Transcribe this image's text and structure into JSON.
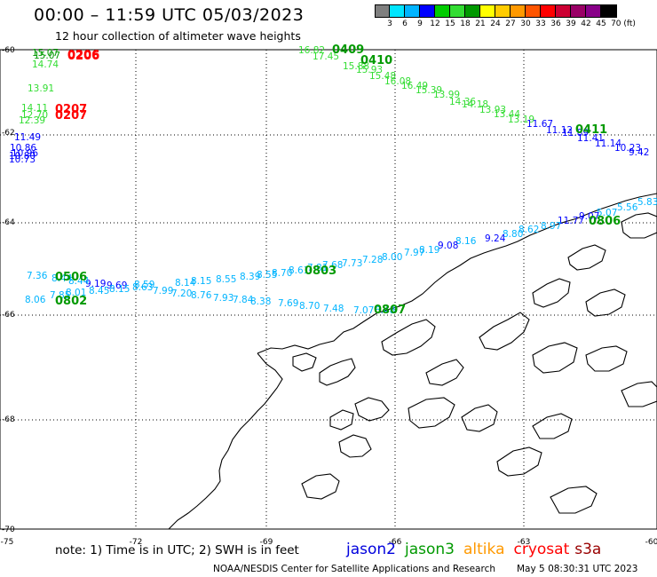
{
  "header": {
    "title": "00:00 – 11:59 UTC 05/03/2023",
    "subtitle": "12 hour collection of altimeter wave heights"
  },
  "colorbar": {
    "colors": [
      "#7f7f7f",
      "#00e5ff",
      "#00b4ff",
      "#0000ff",
      "#00cc00",
      "#33dd33",
      "#009900",
      "#ffff00",
      "#ffcc00",
      "#ff9900",
      "#ff5500",
      "#ff0000",
      "#cc0033",
      "#990066",
      "#880088",
      "#000000"
    ],
    "labels": [
      "3",
      "6",
      "9",
      "12",
      "15",
      "18",
      "21",
      "24",
      "27",
      "30",
      "33",
      "36",
      "39",
      "42",
      "45",
      "70 (ft)"
    ]
  },
  "axes": {
    "lon_labels": [
      "-75",
      "-72",
      "-69",
      "-66",
      "-63",
      "-60"
    ],
    "lat_labels": [
      "-60",
      "-62",
      "-64",
      "-66",
      "-68",
      "-70"
    ]
  },
  "observations": [
    {
      "t": "15.07",
      "c": "#009900"
    },
    {
      "t": "15.07",
      "c": "#009900"
    },
    {
      "t": "14.74",
      "c": "#33dd33"
    },
    {
      "t": "13.91",
      "c": "#33dd33"
    },
    {
      "t": "14.11",
      "c": "#33dd33"
    },
    {
      "t": "12.70",
      "c": "#33dd33"
    },
    {
      "t": "12.39",
      "c": "#33dd33"
    },
    {
      "t": "11.49",
      "c": "#0000ff"
    },
    {
      "t": "10.86",
      "c": "#0000ff"
    },
    {
      "t": "10.96",
      "c": "#0000ff"
    },
    {
      "t": "10.80",
      "c": "#0000ff"
    },
    {
      "t": "10.73",
      "c": "#0000ff"
    },
    {
      "t": "16.82",
      "c": "#33dd33"
    },
    {
      "t": "17.45",
      "c": "#33dd33"
    },
    {
      "t": "15.88",
      "c": "#33dd33"
    },
    {
      "t": "15.93",
      "c": "#33dd33"
    },
    {
      "t": "15.48",
      "c": "#33dd33"
    },
    {
      "t": "16.08",
      "c": "#33dd33"
    },
    {
      "t": "16.49",
      "c": "#33dd33"
    },
    {
      "t": "15.39",
      "c": "#33dd33"
    },
    {
      "t": "13.99",
      "c": "#33dd33"
    },
    {
      "t": "14.36",
      "c": "#33dd33"
    },
    {
      "t": "14.18",
      "c": "#33dd33"
    },
    {
      "t": "13.93",
      "c": "#33dd33"
    },
    {
      "t": "13.44",
      "c": "#33dd33"
    },
    {
      "t": "13.19",
      "c": "#33dd33"
    },
    {
      "t": "11.67",
      "c": "#0000ff"
    },
    {
      "t": "11.12",
      "c": "#0000ff"
    },
    {
      "t": "11.89",
      "c": "#0000ff"
    },
    {
      "t": "11.41",
      "c": "#0000ff"
    },
    {
      "t": "11.14",
      "c": "#0000ff"
    },
    {
      "t": "10.23",
      "c": "#0000ff"
    },
    {
      "t": "9.42",
      "c": "#0000ff"
    },
    {
      "t": "5.83",
      "c": "#00b4ff"
    },
    {
      "t": "5.56",
      "c": "#00b4ff"
    },
    {
      "t": "5.07",
      "c": "#00b4ff"
    },
    {
      "t": "9.07",
      "c": "#0000ff"
    },
    {
      "t": "11.77",
      "c": "#0000ff"
    },
    {
      "t": "8.97",
      "c": "#00b4ff"
    },
    {
      "t": "8.62",
      "c": "#00b4ff"
    },
    {
      "t": "8.80",
      "c": "#00b4ff"
    },
    {
      "t": "9.24",
      "c": "#0000ff"
    },
    {
      "t": "8.16",
      "c": "#00b4ff"
    },
    {
      "t": "9.08",
      "c": "#0000ff"
    },
    {
      "t": "8.19",
      "c": "#00b4ff"
    },
    {
      "t": "7.97",
      "c": "#00b4ff"
    },
    {
      "t": "8.00",
      "c": "#00b4ff"
    },
    {
      "t": "7.28",
      "c": "#00b4ff"
    },
    {
      "t": "7.73",
      "c": "#00b4ff"
    },
    {
      "t": "7.68",
      "c": "#00b4ff"
    },
    {
      "t": "7.81",
      "c": "#00b4ff"
    },
    {
      "t": "8.61",
      "c": "#00b4ff"
    },
    {
      "t": "8.70",
      "c": "#00b4ff"
    },
    {
      "t": "8.55",
      "c": "#00b4ff"
    },
    {
      "t": "8.39",
      "c": "#00b4ff"
    },
    {
      "t": "8.55",
      "c": "#00b4ff"
    },
    {
      "t": "8.15",
      "c": "#00b4ff"
    },
    {
      "t": "8.14",
      "c": "#00b4ff"
    },
    {
      "t": "8.59",
      "c": "#00b4ff"
    },
    {
      "t": "9.69",
      "c": "#0000ff"
    },
    {
      "t": "9.19",
      "c": "#0000ff"
    },
    {
      "t": "8.44",
      "c": "#00b4ff"
    },
    {
      "t": "8.44",
      "c": "#00b4ff"
    },
    {
      "t": "7.36",
      "c": "#00b4ff"
    },
    {
      "t": "8.06",
      "c": "#00b4ff"
    },
    {
      "t": "7.85",
      "c": "#00b4ff"
    },
    {
      "t": "8.01",
      "c": "#00b4ff"
    },
    {
      "t": "8.45",
      "c": "#00b4ff"
    },
    {
      "t": "8.15",
      "c": "#00b4ff"
    },
    {
      "t": "8.63",
      "c": "#00b4ff"
    },
    {
      "t": "7.99",
      "c": "#00b4ff"
    },
    {
      "t": "7.20",
      "c": "#00b4ff"
    },
    {
      "t": "8.76",
      "c": "#00b4ff"
    },
    {
      "t": "7.93",
      "c": "#00b4ff"
    },
    {
      "t": "7.84",
      "c": "#00b4ff"
    },
    {
      "t": "8.38",
      "c": "#00b4ff"
    },
    {
      "t": "7.69",
      "c": "#00b4ff"
    },
    {
      "t": "8.70",
      "c": "#00b4ff"
    },
    {
      "t": "7.48",
      "c": "#00b4ff"
    },
    {
      "t": "7.07",
      "c": "#00b4ff"
    },
    {
      "t": "6.48",
      "c": "#00b4ff"
    }
  ],
  "pass_labels": [
    {
      "t": "0206",
      "c": "#ff0000"
    },
    {
      "t": "0206",
      "c": "#ff0000"
    },
    {
      "t": "0207",
      "c": "#ff0000"
    },
    {
      "t": "0207",
      "c": "#ff0000"
    },
    {
      "t": "0409",
      "c": "#009900"
    },
    {
      "t": "0410",
      "c": "#009900"
    },
    {
      "t": "0411",
      "c": "#009900"
    },
    {
      "t": "0806",
      "c": "#009900"
    },
    {
      "t": "0803",
      "c": "#009900"
    },
    {
      "t": "0506",
      "c": "#009900"
    },
    {
      "t": "0802",
      "c": "#009900"
    },
    {
      "t": "0807",
      "c": "#009900"
    }
  ],
  "footer": {
    "note": "note:  1) Time is in UTC;  2) SWH is in feet",
    "satellites": [
      {
        "name": "jason2",
        "color": "#0000dd"
      },
      {
        "name": "jason3",
        "color": "#009900"
      },
      {
        "name": "altika",
        "color": "#ff9900"
      },
      {
        "name": "cryosat",
        "color": "#ff0000"
      },
      {
        "name": "s3a",
        "color": "#990000"
      }
    ],
    "credit": "NOAA/NESDIS Center for Satellite Applications and Research",
    "timestamp": "May  5 08:30:31 UTC 2023"
  }
}
